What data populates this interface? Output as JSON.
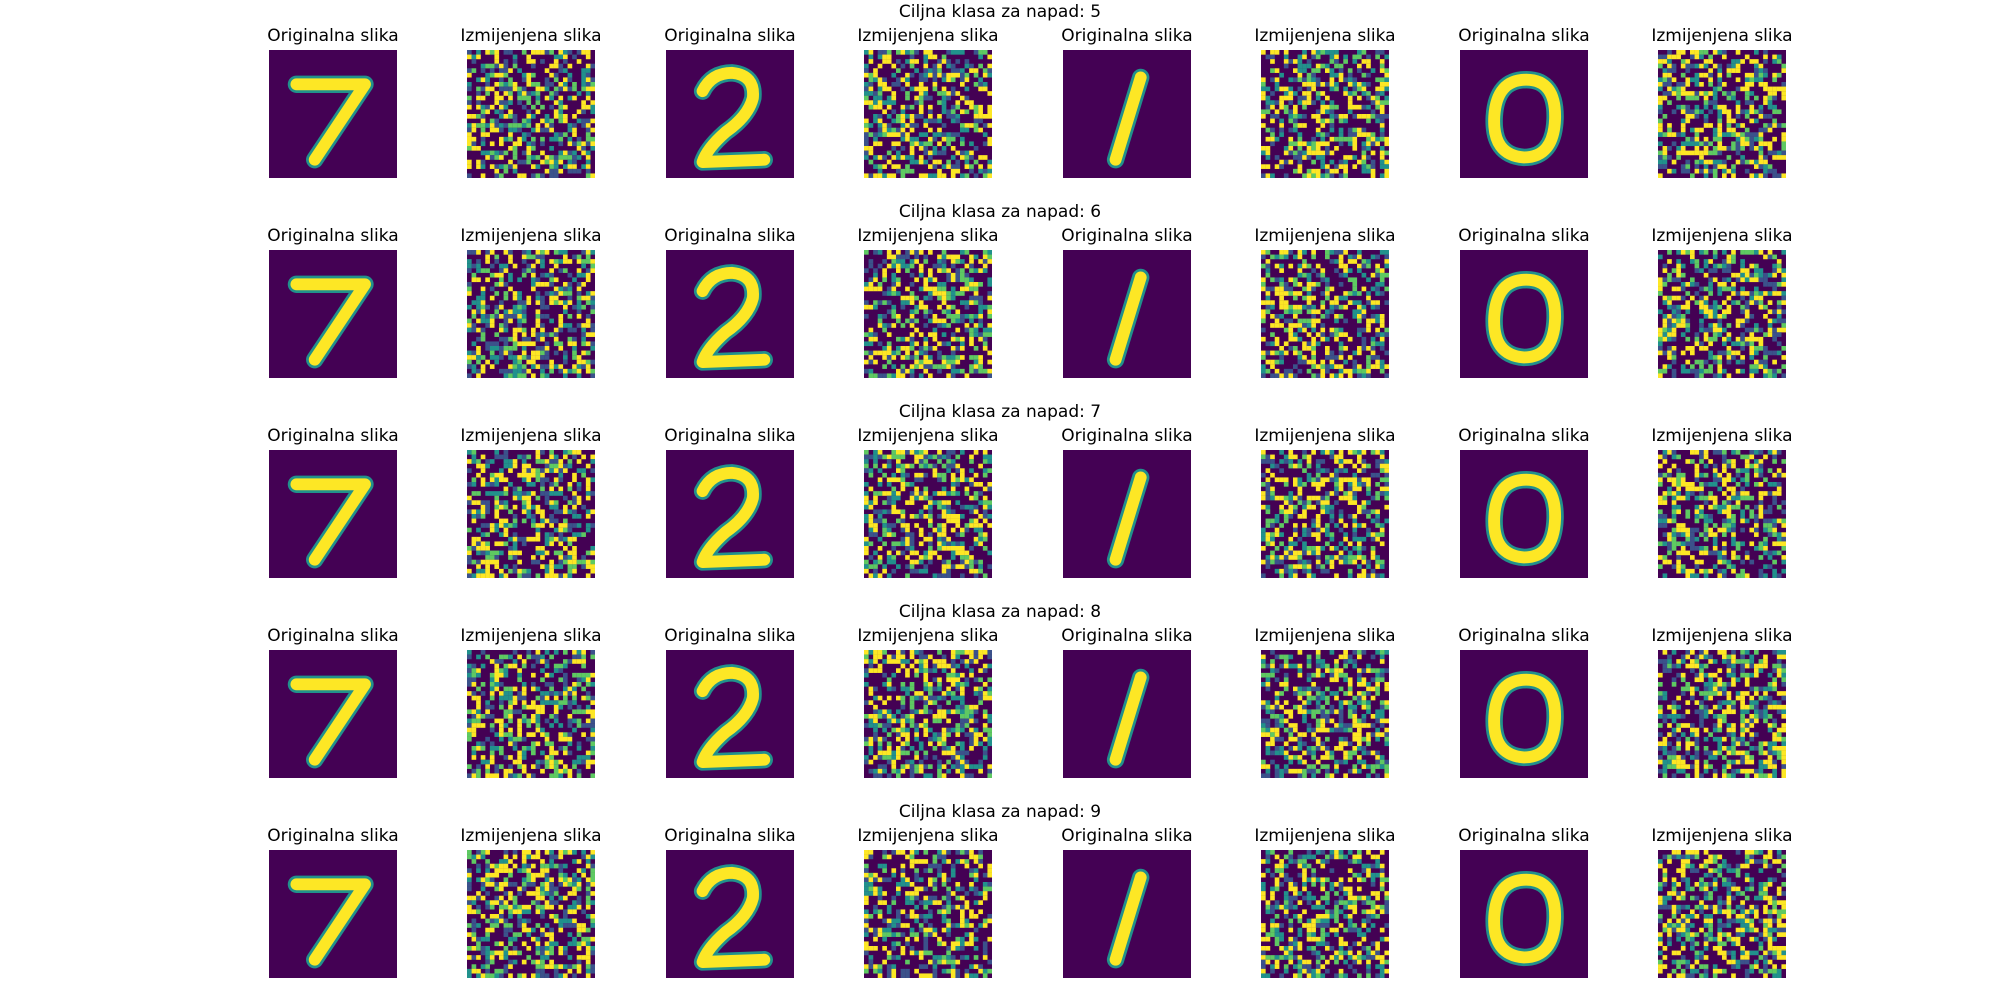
{
  "chart_data": {
    "type": "image-grid",
    "colormap": "viridis",
    "colors": {
      "background": "#440154",
      "stroke": "#fde725",
      "mid": "#21918c",
      "dark": "#3b528b",
      "light": "#5ec962"
    },
    "column_titles": [
      "Originalna slika",
      "Izmijenjena slika",
      "Originalna slika",
      "Izmijenjena slika",
      "Originalna slika",
      "Izmijenjena slika",
      "Originalna slika",
      "Izmijenjena slika"
    ],
    "original_digits": [
      "7",
      "2",
      "1",
      "0"
    ],
    "rows": [
      {
        "title": "Ciljna klasa za napad: 5",
        "target_class": 5
      },
      {
        "title": "Ciljna klasa za napad: 6",
        "target_class": 6
      },
      {
        "title": "Ciljna klasa za napad: 7",
        "target_class": 7
      },
      {
        "title": "Ciljna klasa za napad: 8",
        "target_class": 8
      },
      {
        "title": "Ciljna klasa za napad: 9",
        "target_class": 9
      }
    ]
  }
}
